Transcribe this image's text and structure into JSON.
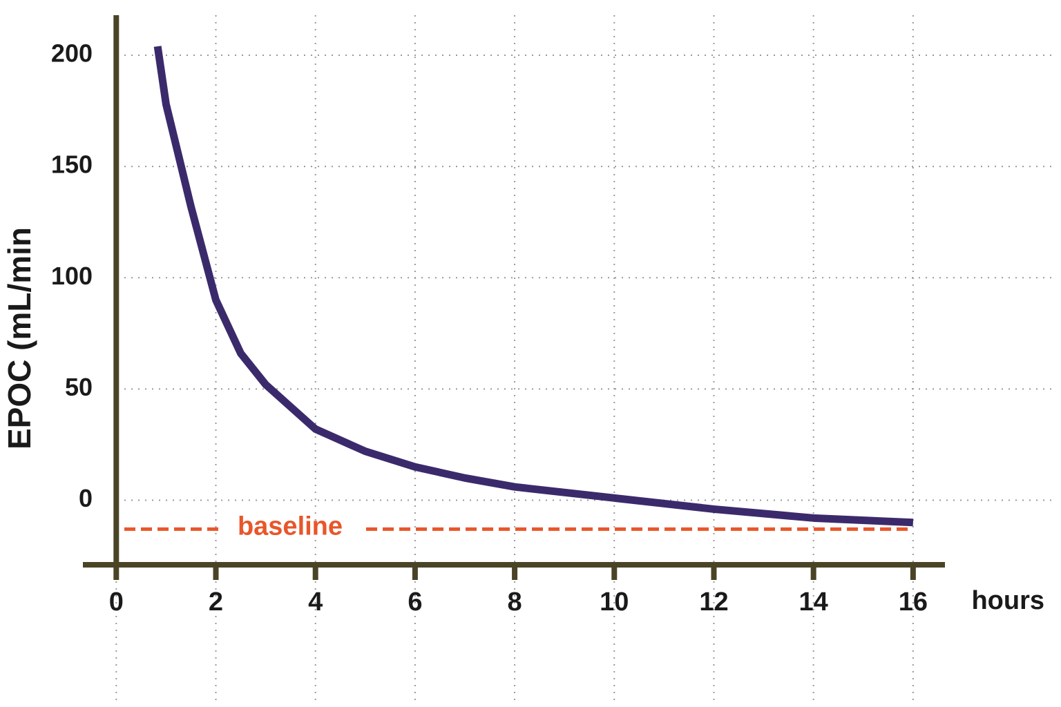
{
  "chart_data": {
    "type": "line",
    "y_label": "EPOC (mL/min",
    "x_label": "hours",
    "x": [
      0.83,
      1,
      1.5,
      2,
      2.5,
      3,
      4,
      5,
      6,
      7,
      8,
      10,
      12,
      14,
      16
    ],
    "series": [
      {
        "color": "#3b2a6b",
        "values": [
          204,
          178,
          132,
          90,
          66,
          52,
          32,
          22,
          15,
          10,
          6,
          1,
          -4,
          -8,
          -10
        ]
      }
    ],
    "baseline": {
      "label": "baseline",
      "value": -13,
      "color": "#e8562a"
    },
    "xlim": [
      -0.67,
      16.64
    ],
    "xticks": [
      0,
      2,
      4,
      6,
      8,
      10,
      12,
      14,
      16
    ],
    "ylim": [
      -29,
      218
    ],
    "yticks": [
      0,
      50,
      100,
      150,
      200
    ],
    "grid": true
  }
}
